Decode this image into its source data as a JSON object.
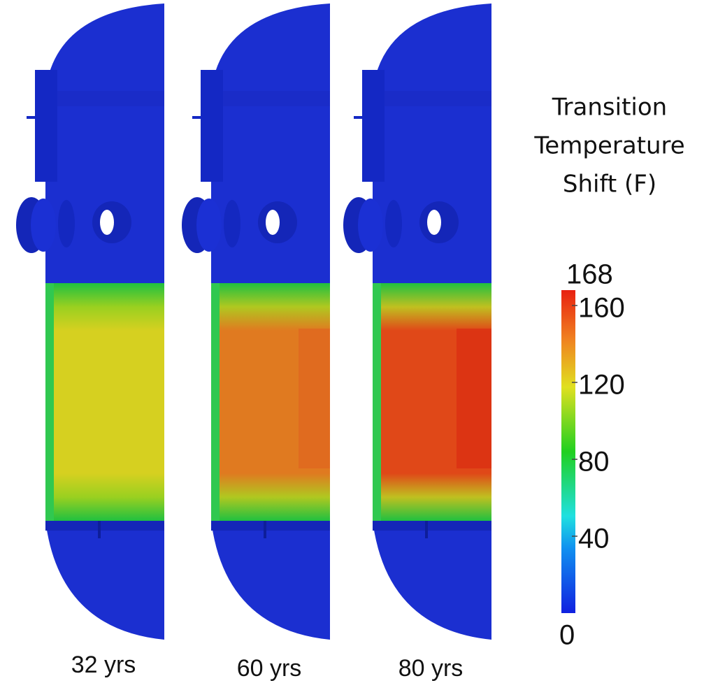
{
  "legend": {
    "title": [
      "Transition",
      "Temperature",
      "Shift (F)"
    ],
    "range": [
      0,
      168
    ],
    "ticks": [
      40,
      80,
      120,
      160
    ]
  },
  "panels": [
    {
      "label": "32 yrs"
    },
    {
      "label": "60 yrs"
    },
    {
      "label": "80 yrs"
    }
  ]
}
